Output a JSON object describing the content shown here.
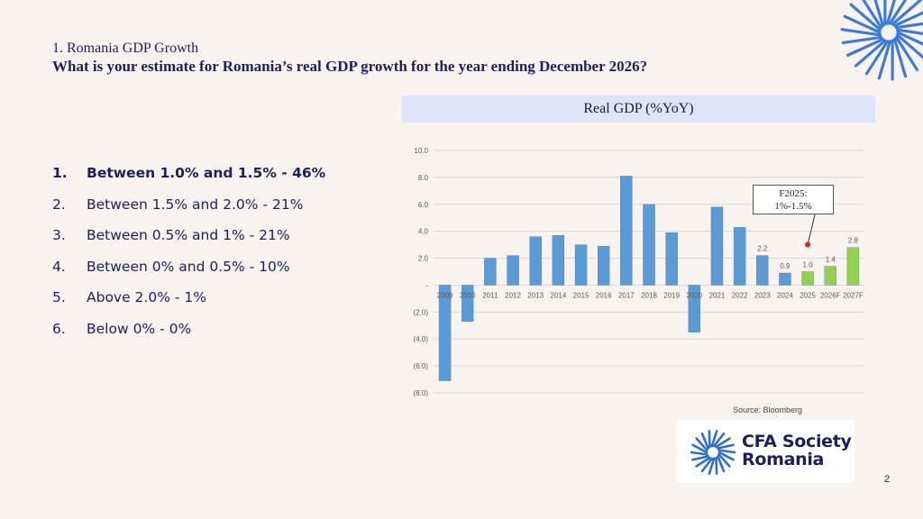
{
  "title": {
    "line1": "1. Romania GDP Growth",
    "line2": "What is your estimate for Romania’s real GDP growth for the year ending December 2026?"
  },
  "options": [
    {
      "num": "1.",
      "text": "Between 1.0% and 1.5% - 46%",
      "bold": true
    },
    {
      "num": "2.",
      "text": "Between 1.5% and 2.0%  - 21%",
      "bold": false
    },
    {
      "num": "3.",
      "text": "Between 0.5% and 1% - 21%",
      "bold": false
    },
    {
      "num": "4.",
      "text": "Between 0% and 0.5% - 10%",
      "bold": false
    },
    {
      "num": "5.",
      "text": "Above 2.0% - 1%",
      "bold": false
    },
    {
      "num": "6.",
      "text": "Below 0% - 0%",
      "bold": false
    }
  ],
  "chart_header": "Real GDP (%YoY)",
  "chart_data": {
    "type": "bar",
    "title": "Real GDP (%YoY)",
    "categories": [
      "2009",
      "2010",
      "2011",
      "2012",
      "2013",
      "2014",
      "2015",
      "2016",
      "2017",
      "2018",
      "2019",
      "2020",
      "2021",
      "2022",
      "2023",
      "2024",
      "2025",
      "2026F",
      "2027F"
    ],
    "values": [
      -7.1,
      -2.7,
      2.0,
      2.2,
      3.6,
      3.7,
      3.0,
      2.9,
      8.1,
      6.0,
      3.9,
      -3.5,
      5.8,
      4.3,
      2.2,
      0.9,
      1.0,
      1.4,
      2.8
    ],
    "data_labels": {
      "14": "2.2",
      "15": "0.9",
      "16": "1.0",
      "17": "1.4",
      "18": "2.8"
    },
    "forecast_from_index": 16,
    "ylim": [
      -8,
      10
    ],
    "yticks": [
      10,
      8,
      6,
      4,
      2,
      0,
      -2,
      -4,
      -6,
      -8
    ],
    "ytick_labels": [
      "10.0",
      "8.0",
      "6.0",
      "4.0",
      "2.0",
      "-",
      "(2.0)",
      "(4.0)",
      "(6.0)",
      "(8.0)"
    ],
    "grid": true,
    "colors": {
      "actual": "#5b9bd5",
      "forecast": "#92d050",
      "marker": "#e02020"
    },
    "marker_index": 16,
    "annotation": {
      "line1": "F2025:",
      "line2": "1%-1.5%"
    }
  },
  "source": "Source: Bloomberg",
  "logo": {
    "line1": "CFA Society",
    "line2": "Romania"
  },
  "page_number": "2"
}
